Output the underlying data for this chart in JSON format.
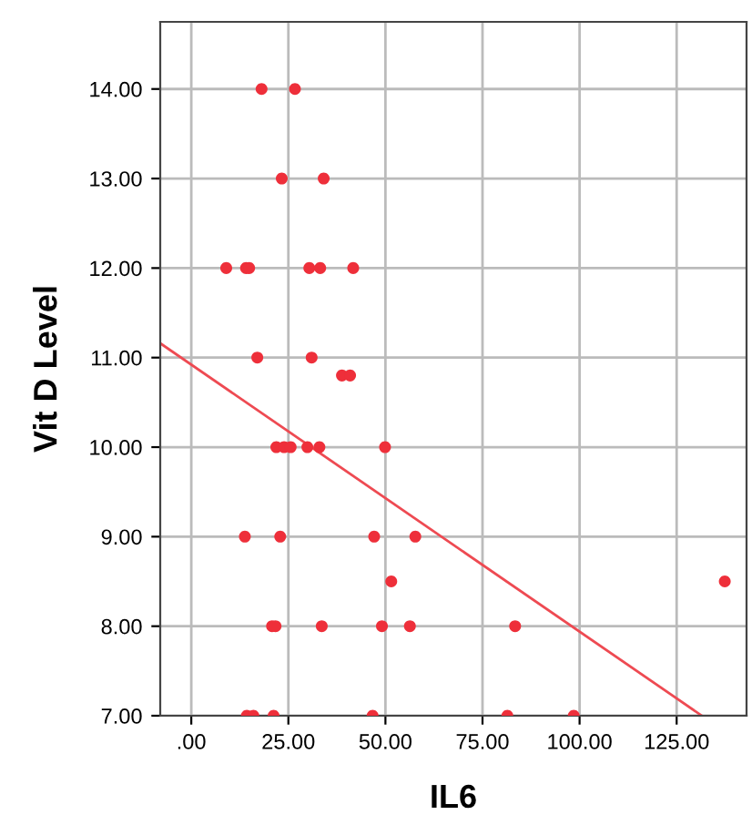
{
  "chart_data": {
    "type": "scatter",
    "xlabel": "IL6",
    "ylabel": "Vit D Level",
    "xlim": [
      -8,
      143
    ],
    "ylim": [
      7,
      14.75
    ],
    "xticks": [
      {
        "value": 0,
        "label": ".00"
      },
      {
        "value": 25,
        "label": "25.00"
      },
      {
        "value": 50,
        "label": "50.00"
      },
      {
        "value": 75,
        "label": "75.00"
      },
      {
        "value": 100,
        "label": "100.00"
      },
      {
        "value": 125,
        "label": "125.00"
      }
    ],
    "yticks": [
      {
        "value": 7,
        "label": "7.00"
      },
      {
        "value": 8,
        "label": "8.00"
      },
      {
        "value": 9,
        "label": "9.00"
      },
      {
        "value": 10,
        "label": "10.00"
      },
      {
        "value": 11,
        "label": "11.00"
      },
      {
        "value": 12,
        "label": "12.00"
      },
      {
        "value": 13,
        "label": "13.00"
      },
      {
        "value": 14,
        "label": "14.00"
      }
    ],
    "grid": true,
    "marker": "circle",
    "legend": false,
    "series": [
      {
        "color": "#ee2f3a",
        "x": [
          18.1,
          26.7,
          23.3,
          34.1,
          9.0,
          14.1,
          14.9,
          30.4,
          33.2,
          41.7,
          17.0,
          31.0,
          38.8,
          40.9,
          21.9,
          23.9,
          25.6,
          29.9,
          33.0,
          49.9,
          13.8,
          22.9,
          47.1,
          57.7,
          51.5,
          137.4,
          20.8,
          21.7,
          33.6,
          49.1,
          56.3,
          83.4,
          14.3,
          16.0,
          21.2,
          46.7,
          81.4,
          98.5
        ],
        "values": [
          14,
          14,
          13,
          13,
          12,
          12,
          12,
          12,
          12,
          12,
          11,
          11,
          10.8,
          10.8,
          10,
          10,
          10,
          10,
          10,
          10,
          9,
          9,
          9,
          9,
          8.5,
          8.5,
          8,
          8,
          8,
          8,
          8,
          8,
          7,
          7,
          7,
          7,
          7,
          7
        ]
      },
      {
        "type": "line",
        "color": "#ee4a52",
        "marker": "none",
        "x": [
          -8,
          131.5
        ],
        "values": [
          11.16,
          7.0
        ]
      }
    ]
  }
}
